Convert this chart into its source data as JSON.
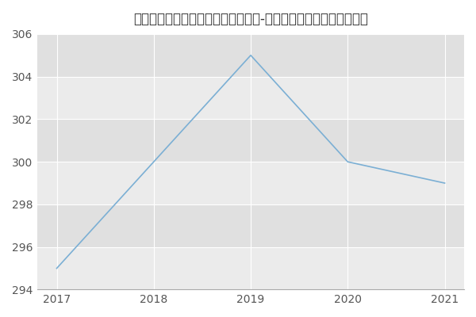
{
  "title": "南通大学医学院、药学院神经病学（-历年复试）研究生录取分数线",
  "x": [
    2017,
    2018,
    2019,
    2020,
    2021
  ],
  "y": [
    295,
    300,
    305,
    300,
    299
  ],
  "line_color": "#7bafd4",
  "plot_bg_color": "#ebebeb",
  "stripe_color": "#e0e0e0",
  "ylim": [
    294,
    306
  ],
  "xlim": [
    2016.8,
    2021.2
  ],
  "yticks": [
    294,
    296,
    298,
    300,
    302,
    304,
    306
  ],
  "xticks": [
    2017,
    2018,
    2019,
    2020,
    2021
  ],
  "title_fontsize": 12,
  "tick_fontsize": 10,
  "grid_color": "#ffffff",
  "fig_bg_color": "#ffffff"
}
